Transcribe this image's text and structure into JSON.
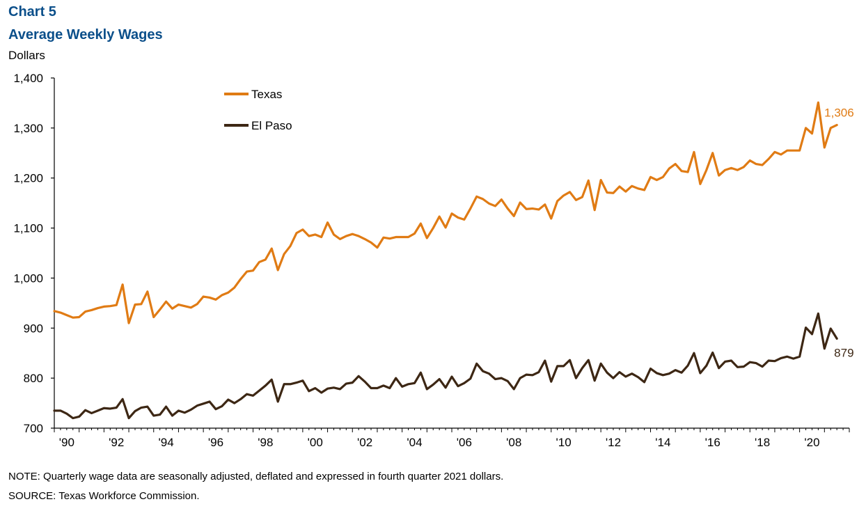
{
  "header": {
    "chart_number": "Chart 5",
    "title": "Average Weekly Wages",
    "y_unit": "Dollars"
  },
  "footer": {
    "note": "NOTE: Quarterly wage data are seasonally adjusted, deflated and expressed in fourth quarter 2021 dollars.",
    "source": "SOURCE: Texas Workforce Commission."
  },
  "colors": {
    "title": "#0b4f8a",
    "texas": "#e07b14",
    "el_paso": "#3d2714",
    "axis": "#000000"
  },
  "chart_data": {
    "type": "line",
    "title": "Average Weekly Wages",
    "ylabel": "Dollars",
    "xlabel": "",
    "ylim": [
      700,
      1400
    ],
    "yticks": [
      700,
      800,
      900,
      1000,
      1100,
      1200,
      1300,
      1400
    ],
    "ytick_labels": [
      "700",
      "800",
      "900",
      "1,000",
      "1,100",
      "1,200",
      "1,300",
      "1,400"
    ],
    "xlim": [
      1990.0,
      2022.0
    ],
    "xticks": [
      1990,
      1992,
      1994,
      1996,
      1998,
      2000,
      2002,
      2004,
      2006,
      2008,
      2010,
      2012,
      2014,
      2016,
      2018,
      2020
    ],
    "xtick_labels": [
      "'90",
      "'92",
      "'94",
      "'96",
      "'98",
      "'00",
      "'02",
      "'04",
      "'06",
      "'08",
      "'10",
      "'12",
      "'14",
      "'16",
      "'18",
      "'20"
    ],
    "x_start": 1990.0,
    "x_step": 0.25,
    "grid": false,
    "legend_position": "top-left",
    "series": [
      {
        "name": "Texas",
        "color": "#e07b14",
        "end_label": "1,306",
        "values": [
          934,
          931,
          926,
          921,
          922,
          933,
          936,
          940,
          943,
          944,
          946,
          987,
          910,
          947,
          948,
          973,
          922,
          937,
          953,
          939,
          947,
          944,
          941,
          948,
          963,
          961,
          957,
          966,
          971,
          981,
          998,
          1013,
          1015,
          1032,
          1037,
          1059,
          1016,
          1048,
          1064,
          1090,
          1097,
          1084,
          1087,
          1082,
          1111,
          1087,
          1078,
          1084,
          1088,
          1084,
          1078,
          1071,
          1061,
          1081,
          1079,
          1082,
          1082,
          1082,
          1089,
          1109,
          1080,
          1100,
          1123,
          1101,
          1129,
          1121,
          1117,
          1139,
          1163,
          1158,
          1149,
          1144,
          1157,
          1139,
          1124,
          1151,
          1138,
          1139,
          1137,
          1147,
          1119,
          1154,
          1165,
          1172,
          1156,
          1162,
          1195,
          1136,
          1196,
          1171,
          1170,
          1183,
          1173,
          1184,
          1179,
          1176,
          1202,
          1196,
          1202,
          1219,
          1228,
          1214,
          1212,
          1252,
          1188,
          1216,
          1250,
          1205,
          1216,
          1220,
          1216,
          1222,
          1235,
          1228,
          1226,
          1238,
          1252,
          1247,
          1255,
          1255,
          1255,
          1300,
          1289,
          1351,
          1261,
          1300,
          1306
        ]
      },
      {
        "name": "El Paso",
        "color": "#3d2714",
        "end_label": "879",
        "values": [
          735,
          735,
          729,
          720,
          723,
          736,
          730,
          735,
          740,
          739,
          741,
          758,
          720,
          734,
          741,
          743,
          725,
          727,
          743,
          725,
          735,
          731,
          737,
          745,
          749,
          753,
          738,
          744,
          757,
          750,
          758,
          768,
          765,
          775,
          785,
          797,
          753,
          788,
          788,
          791,
          795,
          774,
          780,
          771,
          779,
          781,
          778,
          789,
          791,
          804,
          793,
          780,
          780,
          785,
          780,
          800,
          783,
          788,
          790,
          811,
          778,
          787,
          798,
          781,
          803,
          784,
          790,
          799,
          829,
          814,
          809,
          798,
          800,
          794,
          778,
          800,
          807,
          806,
          812,
          835,
          793,
          824,
          824,
          836,
          800,
          820,
          836,
          795,
          829,
          811,
          800,
          812,
          803,
          809,
          802,
          792,
          819,
          810,
          806,
          809,
          816,
          811,
          825,
          850,
          810,
          825,
          851,
          820,
          833,
          835,
          822,
          823,
          832,
          830,
          823,
          835,
          834,
          840,
          843,
          839,
          843,
          901,
          888,
          929,
          859,
          899,
          879
        ]
      }
    ]
  }
}
